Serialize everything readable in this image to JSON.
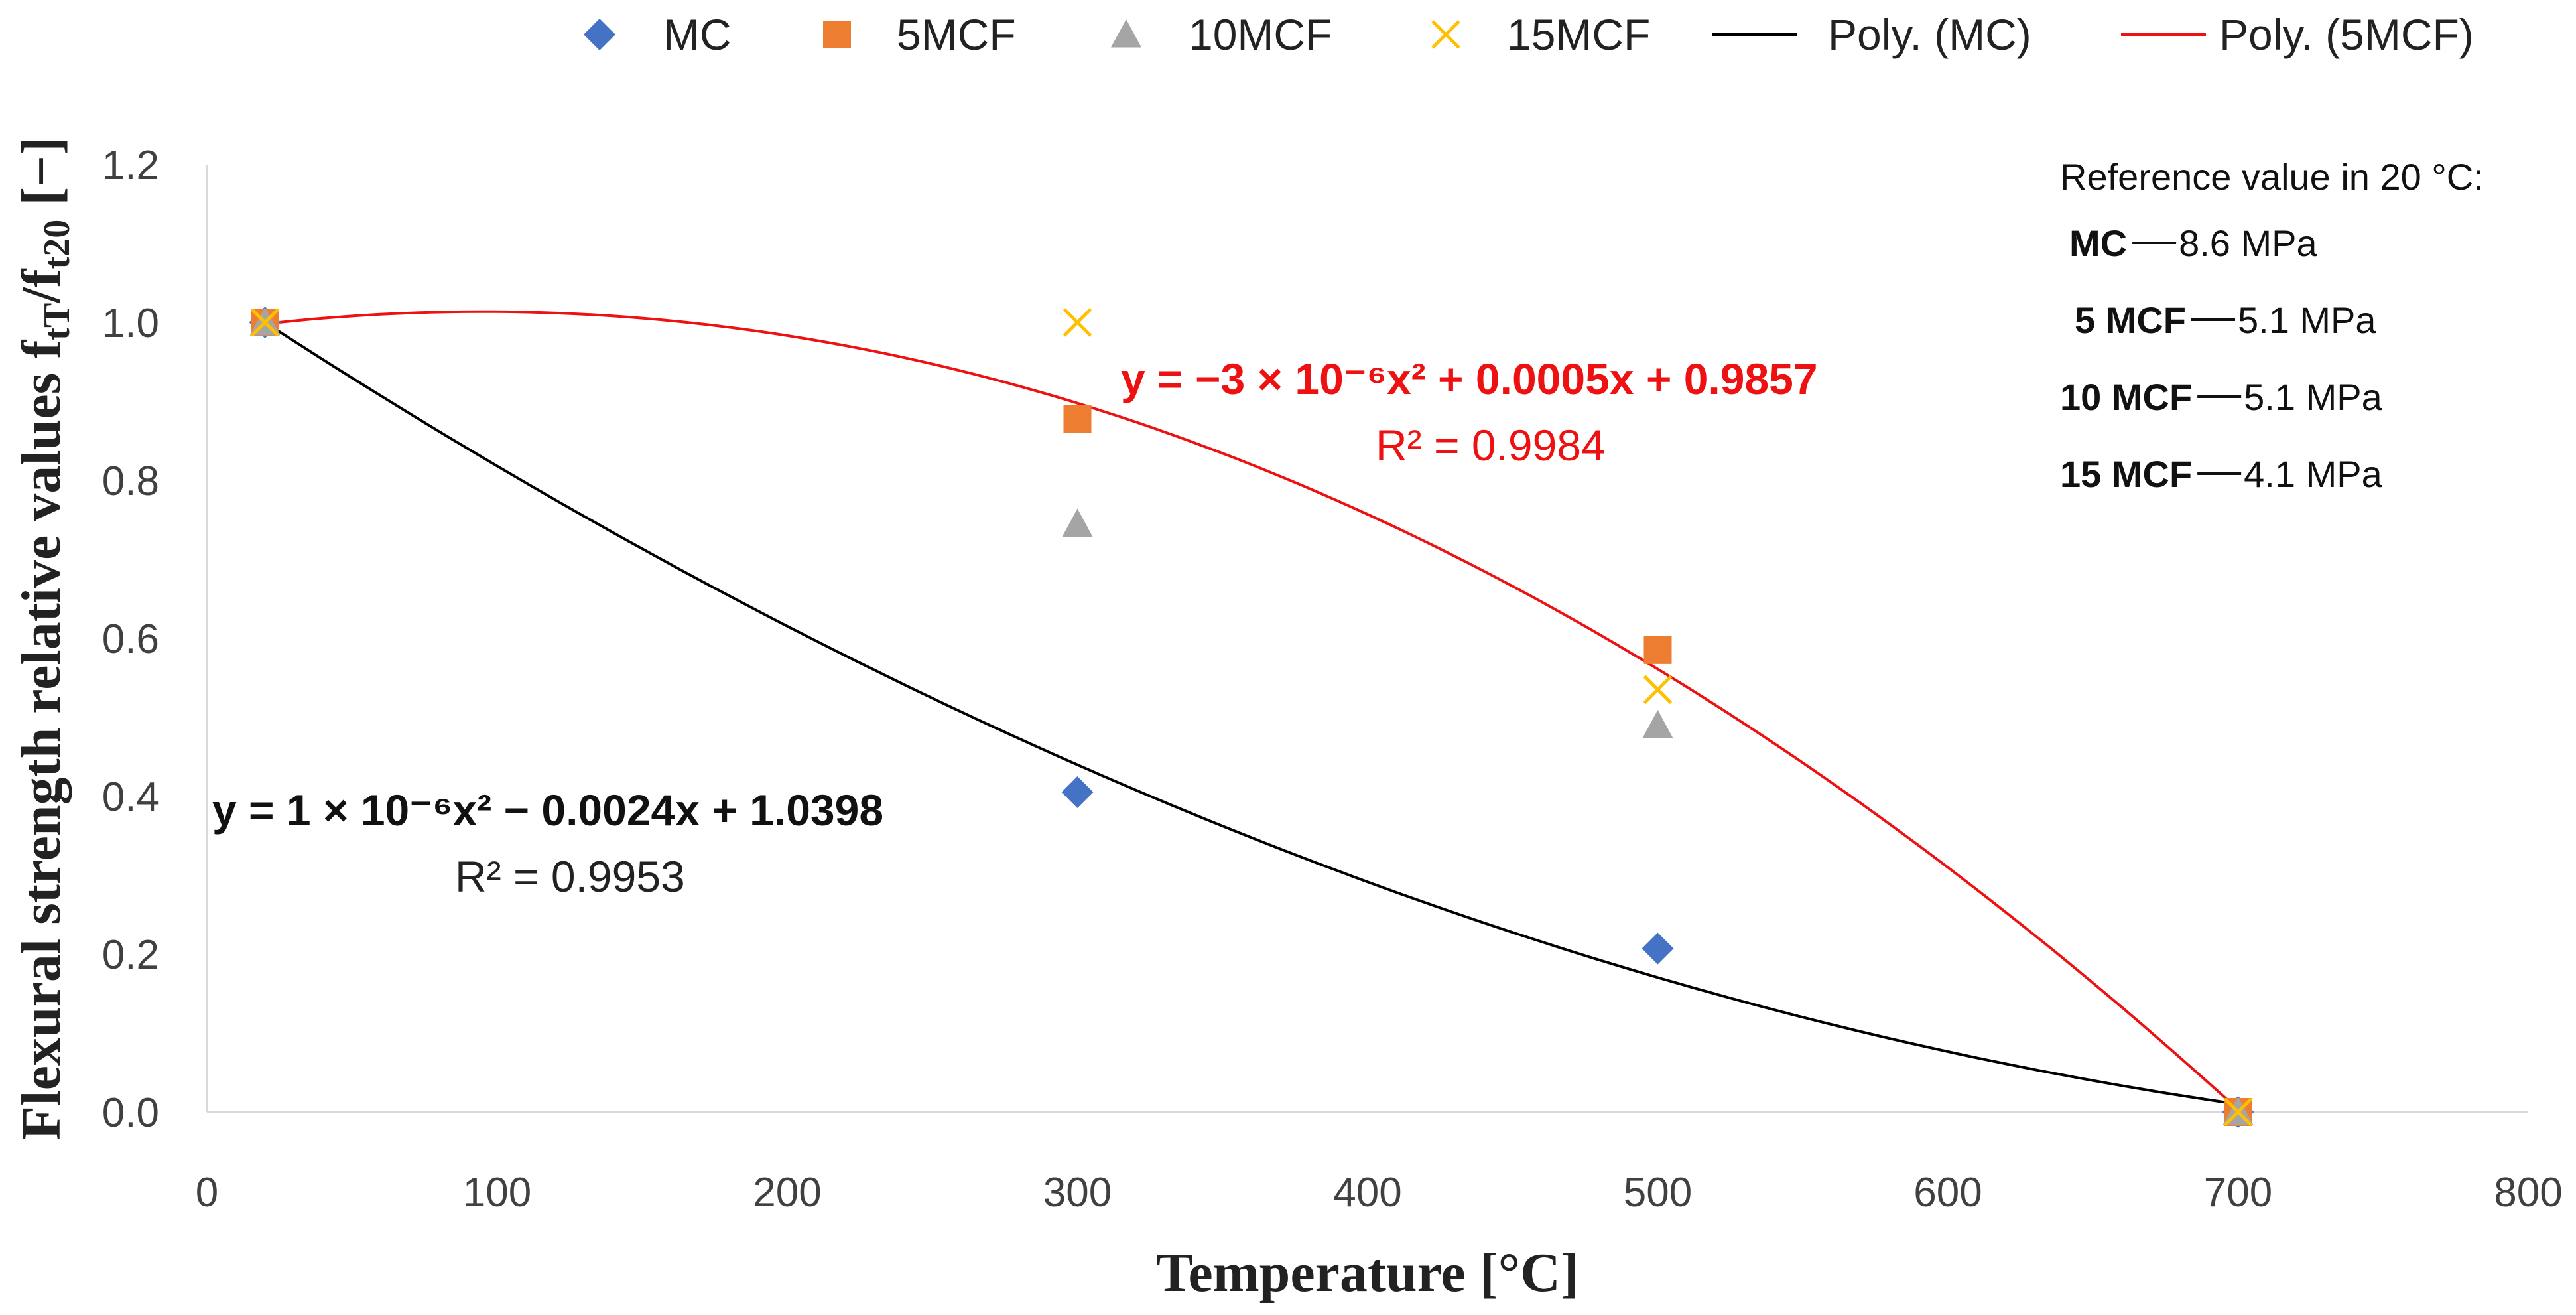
{
  "chart_data": {
    "type": "scatter",
    "xlabel": "Temperature [°C]",
    "ylabel": {
      "main": "Flexural strength relative values f",
      "sub1": "tT",
      "slash": "/f",
      "sub2": "t20",
      "unit": " [−]"
    },
    "xlim": [
      0,
      800
    ],
    "ylim": [
      0,
      1.2
    ],
    "x_ticks": [
      0,
      100,
      200,
      300,
      400,
      500,
      600,
      700,
      800
    ],
    "y_ticks": [
      "0.0",
      "0.2",
      "0.4",
      "0.6",
      "0.8",
      "1.0",
      "1.2"
    ],
    "grid": false,
    "legend_position": "top",
    "series": [
      {
        "name": "MC",
        "marker": "diamond",
        "color": "#4472C4",
        "points": [
          [
            20,
            1.0
          ],
          [
            300,
            0.405
          ],
          [
            500,
            0.207
          ],
          [
            700,
            0.0
          ]
        ]
      },
      {
        "name": "5MCF",
        "marker": "square",
        "color": "#ED7D31",
        "points": [
          [
            20,
            1.0
          ],
          [
            300,
            0.878
          ],
          [
            500,
            0.585
          ],
          [
            700,
            0.0
          ]
        ]
      },
      {
        "name": "10MCF",
        "marker": "triangle",
        "color": "#A5A5A5",
        "points": [
          [
            20,
            1.0
          ],
          [
            300,
            0.745
          ],
          [
            500,
            0.49
          ],
          [
            700,
            0.0
          ]
        ]
      },
      {
        "name": "15MCF",
        "marker": "x",
        "color": "#FFC000",
        "points": [
          [
            20,
            1.0
          ],
          [
            300,
            1.0
          ],
          [
            500,
            0.535
          ],
          [
            700,
            0.0
          ]
        ]
      }
    ],
    "trendlines": [
      {
        "name": "Poly. (MC)",
        "color": "#000000",
        "type": "polynomial",
        "points": [
          [
            20,
            1.0
          ],
          [
            300,
            0.44
          ],
          [
            500,
            0.17
          ],
          [
            700,
            0.01
          ]
        ],
        "equation": "y = 1 × 10⁻⁶x² − 0.0024x + 1.0398",
        "r2": "R² = 0.9953"
      },
      {
        "name": "Poly. (5MCF)",
        "color": "#EE1111",
        "type": "polynomial",
        "points": [
          [
            20,
            1.0
          ],
          [
            300,
            0.89
          ],
          [
            500,
            0.57
          ],
          [
            700,
            0.0
          ]
        ],
        "equation": "y = −3 × 10⁻⁶x² + 0.0005x + 0.9857",
        "r2": "R² = 0.9984"
      }
    ],
    "reference": {
      "title": "Reference value in 20 °C:",
      "items": [
        {
          "label": "MC",
          "value": "8.6 MPa"
        },
        {
          "label": "5 MCF",
          "value": "5.1 MPa"
        },
        {
          "label": "10 MCF",
          "value": "5.1 MPa"
        },
        {
          "label": "15 MCF",
          "value": "4.1 MPa"
        }
      ]
    }
  }
}
